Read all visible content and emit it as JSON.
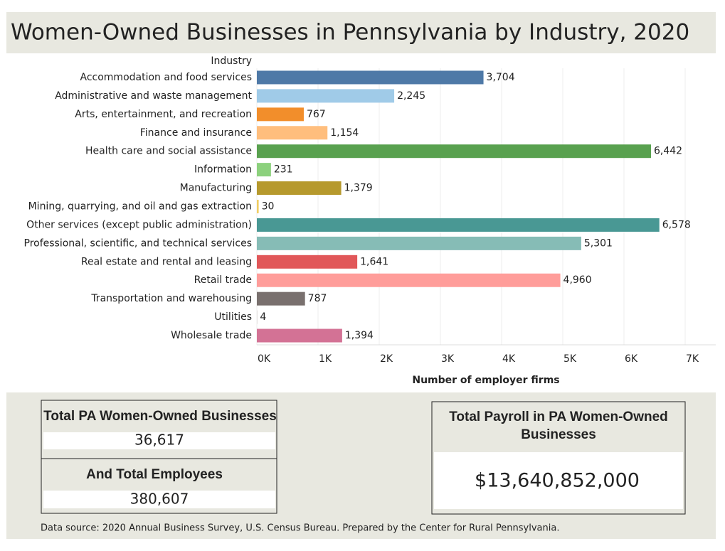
{
  "chart_data": {
    "type": "bar",
    "orientation": "horizontal",
    "title": "Women-Owned Businesses in Pennsylvania by Industry, 2020",
    "y_header": "Industry",
    "x_label": "Number of employer firms",
    "categories": [
      "Accommodation and food services",
      "Administrative and waste management",
      "Arts, entertainment, and recreation",
      "Finance and insurance",
      "Health care and social assistance",
      "Information",
      "Manufacturing",
      "Mining, quarrying, and oil and gas extraction",
      "Other services (except public administration)",
      "Professional, scientific, and technical services",
      "Real estate and rental and leasing",
      "Retail trade",
      "Transportation and warehousing",
      "Utilities",
      "Wholesale trade"
    ],
    "values": [
      3704,
      2245,
      767,
      1154,
      6442,
      231,
      1379,
      30,
      6578,
      5301,
      1641,
      4960,
      787,
      4,
      1394
    ],
    "value_labels": [
      "3,704",
      "2,245",
      "767",
      "1,154",
      "6,442",
      "231",
      "1,379",
      "30",
      "6,578",
      "5,301",
      "1,641",
      "4,960",
      "787",
      "4",
      "1,394"
    ],
    "colors": [
      "#4e79a7",
      "#a0cbe8",
      "#f28e2b",
      "#ffbe7d",
      "#59a14f",
      "#8cd17d",
      "#b6992d",
      "#f1ce63",
      "#499894",
      "#86bcb6",
      "#e15759",
      "#ff9d9a",
      "#79706e",
      "#bab0ac",
      "#d37295"
    ],
    "xlim": [
      0,
      7500
    ],
    "xticks": [
      {
        "value": 0,
        "label": "0K"
      },
      {
        "value": 1000,
        "label": "1K"
      },
      {
        "value": 2000,
        "label": "2K"
      },
      {
        "value": 3000,
        "label": "3K"
      },
      {
        "value": 4000,
        "label": "4K"
      },
      {
        "value": 5000,
        "label": "5K"
      },
      {
        "value": 6000,
        "label": "6K"
      },
      {
        "value": 7000,
        "label": "7K"
      }
    ],
    "grid": true
  },
  "kpis": {
    "businesses": {
      "label": "Total PA Women-Owned Businesses",
      "value": "36,617"
    },
    "employees": {
      "label": "And Total Employees",
      "value": "380,607"
    },
    "payroll": {
      "label": "Total Payroll in PA Women-Owned Businesses",
      "value": "$13,640,852,000"
    }
  },
  "source": "Data source: 2020 Annual Business Survey, U.S. Census Bureau. Prepared by the Center for Rural Pennsylvania."
}
